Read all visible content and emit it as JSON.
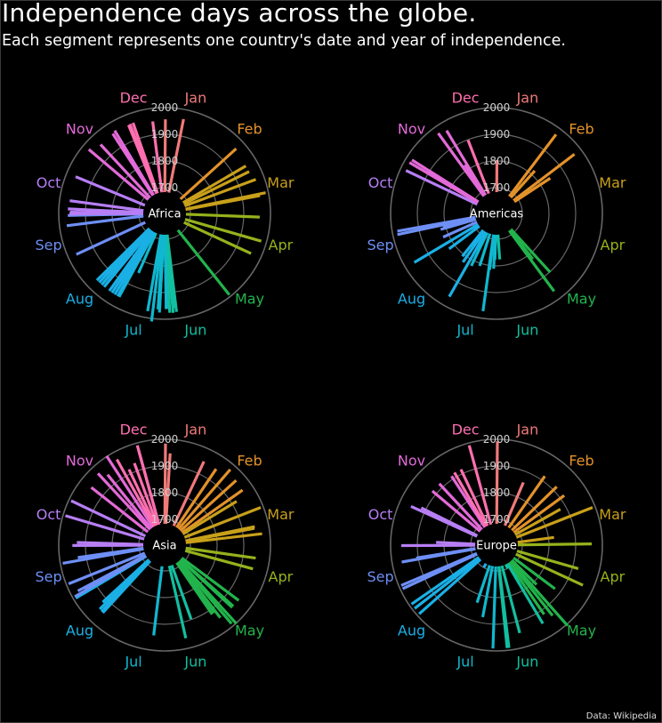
{
  "title": "Independence days across the globe.",
  "subtitle": "Each segment represents one country's date and year of independence.",
  "source": "Data: Wikipedia",
  "months": [
    "Jan",
    "Feb",
    "Mar",
    "Apr",
    "May",
    "Jun",
    "Jul",
    "Aug",
    "Sep",
    "Oct",
    "Nov",
    "Dec"
  ],
  "month_colors": [
    "#f07a7a",
    "#e3922a",
    "#c9a01a",
    "#96b21c",
    "#22b44c",
    "#12bfa0",
    "#10b8cf",
    "#1ab0e6",
    "#6e8ff5",
    "#b77ef5",
    "#e36ad8",
    "#ff6fb0"
  ],
  "ring_labels": [
    "1700",
    "1800",
    "1900",
    "2000"
  ],
  "chart_data": {
    "type": "radial-bar",
    "radial_axis": {
      "min": 1700,
      "max": 2000,
      "ticks": [
        1700,
        1800,
        1900,
        2000
      ]
    },
    "angular_axis": "day of year",
    "panels": [
      {
        "region": "Africa",
        "points": [
          {
            "month": 1,
            "day": 1,
            "year": 1956
          },
          {
            "month": 1,
            "day": 12,
            "year": 1964
          },
          {
            "month": 2,
            "day": 18,
            "year": 1965
          },
          {
            "month": 3,
            "day": 2,
            "year": 1956
          },
          {
            "month": 3,
            "day": 6,
            "year": 1957
          },
          {
            "month": 3,
            "day": 12,
            "year": 1968
          },
          {
            "month": 3,
            "day": 21,
            "year": 1990
          },
          {
            "month": 3,
            "day": 22,
            "year": 1967
          },
          {
            "month": 4,
            "day": 4,
            "year": 1960
          },
          {
            "month": 4,
            "day": 18,
            "year": 1980
          },
          {
            "month": 4,
            "day": 27,
            "year": 1960
          },
          {
            "month": 5,
            "day": 24,
            "year": 1993
          },
          {
            "month": 6,
            "day": 25,
            "year": 1975
          },
          {
            "month": 6,
            "day": 26,
            "year": 1960
          },
          {
            "month": 6,
            "day": 27,
            "year": 1977
          },
          {
            "month": 6,
            "day": 29,
            "year": 1976
          },
          {
            "month": 6,
            "day": 30,
            "year": 1960
          },
          {
            "month": 7,
            "day": 1,
            "year": 1962
          },
          {
            "month": 7,
            "day": 1,
            "year": 1960
          },
          {
            "month": 7,
            "day": 5,
            "year": 1962
          },
          {
            "month": 7,
            "day": 5,
            "year": 1975
          },
          {
            "month": 7,
            "day": 6,
            "year": 1964
          },
          {
            "month": 7,
            "day": 9,
            "year": 2011
          },
          {
            "month": 7,
            "day": 12,
            "year": 1975
          },
          {
            "month": 7,
            "day": 26,
            "year": 1847
          },
          {
            "month": 7,
            "day": 31,
            "year": 1960
          },
          {
            "month": 8,
            "day": 1,
            "year": 1960
          },
          {
            "month": 8,
            "day": 3,
            "year": 1960
          },
          {
            "month": 8,
            "day": 5,
            "year": 1960
          },
          {
            "month": 8,
            "day": 7,
            "year": 1960
          },
          {
            "month": 8,
            "day": 11,
            "year": 1960
          },
          {
            "month": 8,
            "day": 13,
            "year": 1960
          },
          {
            "month": 8,
            "day": 15,
            "year": 1960
          },
          {
            "month": 8,
            "day": 17,
            "year": 1960
          },
          {
            "month": 9,
            "day": 6,
            "year": 1968
          },
          {
            "month": 9,
            "day": 24,
            "year": 1973
          },
          {
            "month": 9,
            "day": 30,
            "year": 1966
          },
          {
            "month": 10,
            "day": 1,
            "year": 1960
          },
          {
            "month": 10,
            "day": 2,
            "year": 1958
          },
          {
            "month": 10,
            "day": 4,
            "year": 1966
          },
          {
            "month": 10,
            "day": 9,
            "year": 1962
          },
          {
            "month": 10,
            "day": 24,
            "year": 1964
          },
          {
            "month": 11,
            "day": 11,
            "year": 1975
          },
          {
            "month": 11,
            "day": 18,
            "year": 1956
          },
          {
            "month": 11,
            "day": 28,
            "year": 1960
          },
          {
            "month": 11,
            "day": 30,
            "year": 1966
          },
          {
            "month": 12,
            "day": 9,
            "year": 1961
          },
          {
            "month": 12,
            "day": 12,
            "year": 1963
          },
          {
            "month": 12,
            "day": 24,
            "year": 1951
          },
          {
            "month": 12,
            "day": 10,
            "year": 1963
          }
        ]
      },
      {
        "region": "Americas",
        "points": [
          {
            "month": 1,
            "day": 1,
            "year": 1804
          },
          {
            "month": 2,
            "day": 7,
            "year": 1974
          },
          {
            "month": 2,
            "day": 23,
            "year": 1970
          },
          {
            "month": 2,
            "day": 12,
            "year": 1818
          },
          {
            "month": 2,
            "day": 27,
            "year": 1844
          },
          {
            "month": 5,
            "day": 24,
            "year": 1822
          },
          {
            "month": 5,
            "day": 26,
            "year": 1966
          },
          {
            "month": 5,
            "day": 20,
            "year": 1902
          },
          {
            "month": 5,
            "day": 25,
            "year": 1810
          },
          {
            "month": 6,
            "day": 28,
            "year": 1776
          },
          {
            "month": 7,
            "day": 4,
            "year": 1776
          },
          {
            "month": 7,
            "day": 5,
            "year": 1811
          },
          {
            "month": 7,
            "day": 9,
            "year": 1816
          },
          {
            "month": 7,
            "day": 10,
            "year": 1973
          },
          {
            "month": 7,
            "day": 20,
            "year": 1810
          },
          {
            "month": 7,
            "day": 28,
            "year": 1821
          },
          {
            "month": 8,
            "day": 1,
            "year": 1962
          },
          {
            "month": 8,
            "day": 6,
            "year": 1825
          },
          {
            "month": 8,
            "day": 10,
            "year": 1809
          },
          {
            "month": 8,
            "day": 25,
            "year": 1825
          },
          {
            "month": 8,
            "day": 31,
            "year": 1962
          },
          {
            "month": 9,
            "day": 7,
            "year": 1822
          },
          {
            "month": 9,
            "day": 15,
            "year": 1821
          },
          {
            "month": 9,
            "day": 16,
            "year": 1810
          },
          {
            "month": 9,
            "day": 18,
            "year": 1810
          },
          {
            "month": 9,
            "day": 19,
            "year": 1983
          },
          {
            "month": 9,
            "day": 21,
            "year": 1981
          },
          {
            "month": 10,
            "day": 27,
            "year": 1979
          },
          {
            "month": 11,
            "day": 1,
            "year": 1981
          },
          {
            "month": 11,
            "day": 3,
            "year": 1978
          },
          {
            "month": 11,
            "day": 3,
            "year": 1903
          },
          {
            "month": 11,
            "day": 25,
            "year": 1975
          },
          {
            "month": 11,
            "day": 28,
            "year": 1821
          },
          {
            "month": 11,
            "day": 30,
            "year": 1966
          },
          {
            "month": 12,
            "day": 10,
            "year": 1898
          }
        ]
      },
      {
        "region": "Asia",
        "points": [
          {
            "month": 1,
            "day": 1,
            "year": 1984
          },
          {
            "month": 1,
            "day": 4,
            "year": 1948
          },
          {
            "month": 1,
            "day": 26,
            "year": 1950
          },
          {
            "month": 2,
            "day": 4,
            "year": 1948
          },
          {
            "month": 2,
            "day": 11,
            "year": 1979
          },
          {
            "month": 2,
            "day": 18,
            "year": 1965
          },
          {
            "month": 2,
            "day": 25,
            "year": 1961
          },
          {
            "month": 3,
            "day": 1,
            "year": 1919
          },
          {
            "month": 3,
            "day": 11,
            "year": 1990
          },
          {
            "month": 3,
            "day": 21,
            "year": 1948
          },
          {
            "month": 3,
            "day": 22,
            "year": 1946
          },
          {
            "month": 3,
            "day": 26,
            "year": 1971
          },
          {
            "month": 4,
            "day": 17,
            "year": 1946
          },
          {
            "month": 4,
            "day": 10,
            "year": 1948
          },
          {
            "month": 5,
            "day": 9,
            "year": 1950
          },
          {
            "month": 5,
            "day": 14,
            "year": 1948
          },
          {
            "month": 5,
            "day": 15,
            "year": 1948
          },
          {
            "month": 5,
            "day": 20,
            "year": 2002
          },
          {
            "month": 5,
            "day": 22,
            "year": 1990
          },
          {
            "month": 5,
            "day": 25,
            "year": 1946
          },
          {
            "month": 5,
            "day": 26,
            "year": 1918
          },
          {
            "month": 5,
            "day": 28,
            "year": 1918
          },
          {
            "month": 6,
            "day": 12,
            "year": 1898
          },
          {
            "month": 6,
            "day": 19,
            "year": 1961
          },
          {
            "month": 7,
            "day": 9,
            "year": 1944
          },
          {
            "month": 8,
            "day": 15,
            "year": 1947
          },
          {
            "month": 8,
            "day": 14,
            "year": 1947
          },
          {
            "month": 8,
            "day": 15,
            "year": 1945
          },
          {
            "month": 8,
            "day": 17,
            "year": 1945
          },
          {
            "month": 8,
            "day": 19,
            "year": 1919
          },
          {
            "month": 8,
            "day": 31,
            "year": 1957
          },
          {
            "month": 8,
            "day": 31,
            "year": 1991
          },
          {
            "month": 9,
            "day": 1,
            "year": 1991
          },
          {
            "month": 9,
            "day": 2,
            "year": 1945
          },
          {
            "month": 9,
            "day": 3,
            "year": 1971
          },
          {
            "month": 9,
            "day": 9,
            "year": 1991
          },
          {
            "month": 9,
            "day": 21,
            "year": 1991
          },
          {
            "month": 9,
            "day": 23,
            "year": 1932
          },
          {
            "month": 10,
            "day": 1,
            "year": 1949
          },
          {
            "month": 10,
            "day": 3,
            "year": 1932
          },
          {
            "month": 10,
            "day": 18,
            "year": 1991
          },
          {
            "month": 10,
            "day": 27,
            "year": 1991
          },
          {
            "month": 11,
            "day": 9,
            "year": 1953
          },
          {
            "month": 11,
            "day": 18,
            "year": 1970
          },
          {
            "month": 11,
            "day": 22,
            "year": 1943
          },
          {
            "month": 11,
            "day": 28,
            "year": 2002
          },
          {
            "month": 12,
            "day": 2,
            "year": 1971
          },
          {
            "month": 12,
            "day": 6,
            "year": 1917
          },
          {
            "month": 12,
            "day": 11,
            "year": 1931
          },
          {
            "month": 12,
            "day": 16,
            "year": 1971
          },
          {
            "month": 12,
            "day": 16,
            "year": 1991
          }
        ]
      },
      {
        "region": "Europe",
        "points": [
          {
            "month": 1,
            "day": 1,
            "year": 1993
          },
          {
            "month": 1,
            "day": 24,
            "year": 1859
          },
          {
            "month": 2,
            "day": 5,
            "year": 1919
          },
          {
            "month": 2,
            "day": 16,
            "year": 1918
          },
          {
            "month": 2,
            "day": 24,
            "year": 1918
          },
          {
            "month": 3,
            "day": 3,
            "year": 1878
          },
          {
            "month": 3,
            "day": 11,
            "year": 1990
          },
          {
            "month": 3,
            "day": 25,
            "year": 1821
          },
          {
            "month": 4,
            "day": 1,
            "year": 1960
          },
          {
            "month": 4,
            "day": 18,
            "year": 1922
          },
          {
            "month": 4,
            "day": 27,
            "year": 1960
          },
          {
            "month": 5,
            "day": 9,
            "year": 1877
          },
          {
            "month": 5,
            "day": 17,
            "year": 1814
          },
          {
            "month": 5,
            "day": 21,
            "year": 2006
          },
          {
            "month": 5,
            "day": 24,
            "year": 1941
          },
          {
            "month": 5,
            "day": 28,
            "year": 1918
          },
          {
            "month": 6,
            "day": 1,
            "year": 1945
          },
          {
            "month": 6,
            "day": 6,
            "year": 1523
          },
          {
            "month": 6,
            "day": 17,
            "year": 1944
          },
          {
            "month": 6,
            "day": 25,
            "year": 1991
          },
          {
            "month": 6,
            "day": 26,
            "year": 1991
          },
          {
            "month": 7,
            "day": 4,
            "year": 1991
          },
          {
            "month": 7,
            "day": 13,
            "year": 1878
          },
          {
            "month": 7,
            "day": 21,
            "year": 1831
          },
          {
            "month": 8,
            "day": 1,
            "year": 1291
          },
          {
            "month": 8,
            "day": 20,
            "year": 1991
          },
          {
            "month": 8,
            "day": 24,
            "year": 1991
          },
          {
            "month": 8,
            "day": 27,
            "year": 1991
          },
          {
            "month": 9,
            "day": 6,
            "year": 1991
          },
          {
            "month": 9,
            "day": 8,
            "year": 1991
          },
          {
            "month": 9,
            "day": 21,
            "year": 1964
          },
          {
            "month": 9,
            "day": 22,
            "year": 1908
          },
          {
            "month": 10,
            "day": 1,
            "year": 1960
          },
          {
            "month": 10,
            "day": 4,
            "year": 1830
          },
          {
            "month": 10,
            "day": 26,
            "year": 1955
          },
          {
            "month": 10,
            "day": 28,
            "year": 1918
          },
          {
            "month": 11,
            "day": 11,
            "year": 1918
          },
          {
            "month": 11,
            "day": 18,
            "year": 1918
          },
          {
            "month": 11,
            "day": 28,
            "year": 1912
          },
          {
            "month": 12,
            "day": 1,
            "year": 1918
          },
          {
            "month": 12,
            "day": 6,
            "year": 1917
          },
          {
            "month": 12,
            "day": 16,
            "year": 1991
          }
        ]
      }
    ]
  }
}
